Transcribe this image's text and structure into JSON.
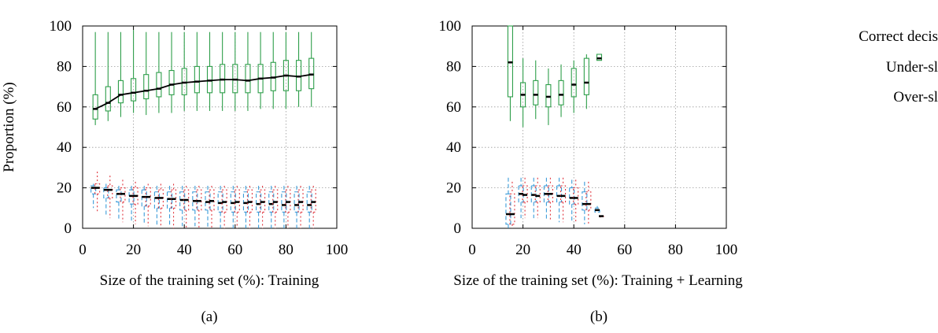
{
  "colors": {
    "correct": "#2e9e4a",
    "under": "#3a9bd9",
    "over": "#e0343c",
    "median": "#000000"
  },
  "legend": [
    "Correct decis",
    "Under-sl",
    "Over-sl"
  ],
  "chart_data": [
    {
      "type": "boxplot",
      "caption": "(a)",
      "xlabel": "Size of the training set (%): Training",
      "ylabel": "Proportion (%)",
      "xlim": [
        0,
        100
      ],
      "ylim": [
        0,
        100
      ],
      "xticks": [
        "0",
        "20",
        "40",
        "60",
        "80",
        "100"
      ],
      "yticks": [
        "0",
        "20",
        "40",
        "60",
        "80",
        "100"
      ],
      "grid": true,
      "x": [
        5,
        10,
        15,
        20,
        25,
        30,
        35,
        40,
        45,
        50,
        55,
        60,
        65,
        70,
        75,
        80,
        85,
        90
      ],
      "series": [
        {
          "key": "correct",
          "median": [
            59,
            62,
            66,
            67,
            68,
            69,
            71,
            72,
            72.5,
            73,
            73.5,
            73.5,
            73,
            74,
            74.5,
            75.5,
            75,
            76
          ],
          "q1": [
            54,
            58,
            62,
            63,
            64,
            65,
            66,
            66,
            67,
            67,
            67,
            67,
            67,
            67,
            68,
            68,
            68,
            69
          ],
          "q3": [
            66,
            70,
            73,
            74,
            76,
            77,
            78,
            79,
            80,
            80,
            81,
            81,
            81,
            81,
            82,
            83,
            83,
            84
          ],
          "lo": [
            51,
            53,
            55,
            57,
            56,
            57,
            57,
            58,
            58,
            58,
            58,
            58,
            58,
            59,
            59,
            59,
            60,
            60
          ],
          "hi": [
            97,
            97,
            97,
            98,
            97,
            97,
            97,
            97,
            97,
            97,
            97,
            97,
            97,
            97,
            97,
            97,
            97,
            97
          ]
        },
        {
          "key": "under",
          "median": [
            20,
            19,
            17,
            16,
            15.5,
            15,
            14.5,
            14,
            13.5,
            13,
            12.5,
            12.5,
            12.5,
            12,
            12,
            11.5,
            11.5,
            11.5
          ],
          "q1": [
            17,
            15,
            13,
            12,
            11,
            10,
            10,
            9,
            9,
            9,
            8,
            8,
            8,
            8,
            8,
            8,
            8,
            8
          ],
          "q3": [
            21,
            20,
            19,
            19,
            19,
            18,
            18,
            18,
            18,
            18,
            18,
            18,
            18,
            18,
            18,
            18,
            18,
            18
          ],
          "lo": [
            10,
            6,
            4,
            3,
            2,
            1,
            1,
            1,
            1,
            0,
            0,
            0,
            0,
            0,
            0,
            0,
            0,
            0
          ],
          "hi": [
            22,
            22,
            21,
            21,
            21,
            21,
            21,
            21,
            21,
            21,
            21,
            21,
            21,
            21,
            21,
            21,
            21,
            21
          ]
        },
        {
          "key": "over",
          "median": [
            20,
            19,
            17,
            16,
            15.5,
            15,
            14.5,
            14,
            13.5,
            13.5,
            13,
            13,
            13,
            13,
            13,
            13,
            13,
            13
          ],
          "q1": [
            17,
            15,
            13,
            12,
            11,
            10,
            10,
            9,
            9,
            9,
            8,
            8,
            8,
            8,
            8,
            8,
            8,
            8
          ],
          "q3": [
            22,
            21,
            20,
            20,
            20,
            19,
            19,
            19,
            19,
            19,
            19,
            19,
            19,
            19,
            19,
            19,
            19,
            19
          ],
          "lo": [
            8,
            5,
            3,
            2,
            1,
            1,
            0,
            0,
            0,
            0,
            0,
            0,
            0,
            0,
            0,
            0,
            0,
            0
          ],
          "hi": [
            28,
            26,
            24,
            23,
            22,
            22,
            22,
            21,
            21,
            21,
            21,
            21,
            21,
            21,
            21,
            21,
            21,
            21
          ]
        }
      ],
      "mean_line": [
        59,
        62,
        66,
        67,
        68,
        69,
        71,
        72,
        72.5,
        73,
        73.5,
        73.5,
        73,
        74,
        74.5,
        75.5,
        75,
        76
      ]
    },
    {
      "type": "boxplot",
      "caption": "(b)",
      "xlabel": "Size of the training set (%): Training + Learning",
      "ylabel": "",
      "xlim": [
        0,
        100
      ],
      "ylim": [
        0,
        100
      ],
      "xticks": [
        "0",
        "20",
        "40",
        "60",
        "80",
        "100"
      ],
      "yticks": [
        "0",
        "20",
        "40",
        "60",
        "80",
        "100"
      ],
      "grid": true,
      "x": [
        15,
        20,
        25,
        30,
        35,
        40,
        45,
        50
      ],
      "series": [
        {
          "key": "correct",
          "median": [
            82,
            66,
            66,
            65,
            66,
            71,
            72,
            84
          ],
          "q1": [
            65,
            60,
            61,
            60,
            61,
            65,
            66,
            83
          ],
          "q3": [
            100,
            72,
            73,
            71,
            73,
            79,
            84,
            86
          ],
          "lo": [
            53,
            50,
            54,
            51,
            55,
            57,
            59,
            83
          ],
          "hi": [
            100,
            84,
            83,
            79,
            81,
            83,
            86,
            86
          ]
        },
        {
          "key": "under",
          "median": [
            7,
            17,
            16.5,
            17,
            16,
            15,
            12,
            9
          ],
          "q1": [
            2,
            13,
            13,
            13,
            13,
            12,
            9,
            8
          ],
          "q3": [
            17,
            21,
            21,
            21,
            21,
            20,
            18,
            10
          ],
          "lo": [
            0,
            5,
            5,
            4,
            3,
            3,
            2,
            8
          ],
          "hi": [
            25,
            25,
            25,
            25,
            25,
            24,
            23,
            11
          ]
        },
        {
          "key": "over",
          "median": [
            7,
            16.5,
            16,
            17,
            16,
            15,
            12,
            6
          ],
          "q1": [
            2,
            13,
            13,
            13,
            13,
            12,
            9,
            6
          ],
          "q3": [
            17,
            21,
            21,
            21,
            21,
            20,
            18,
            6
          ],
          "lo": [
            0,
            5,
            5,
            4,
            3,
            3,
            2,
            6
          ],
          "hi": [
            23,
            25,
            25,
            25,
            25,
            24,
            23,
            6
          ]
        }
      ],
      "mean_line": null
    }
  ]
}
